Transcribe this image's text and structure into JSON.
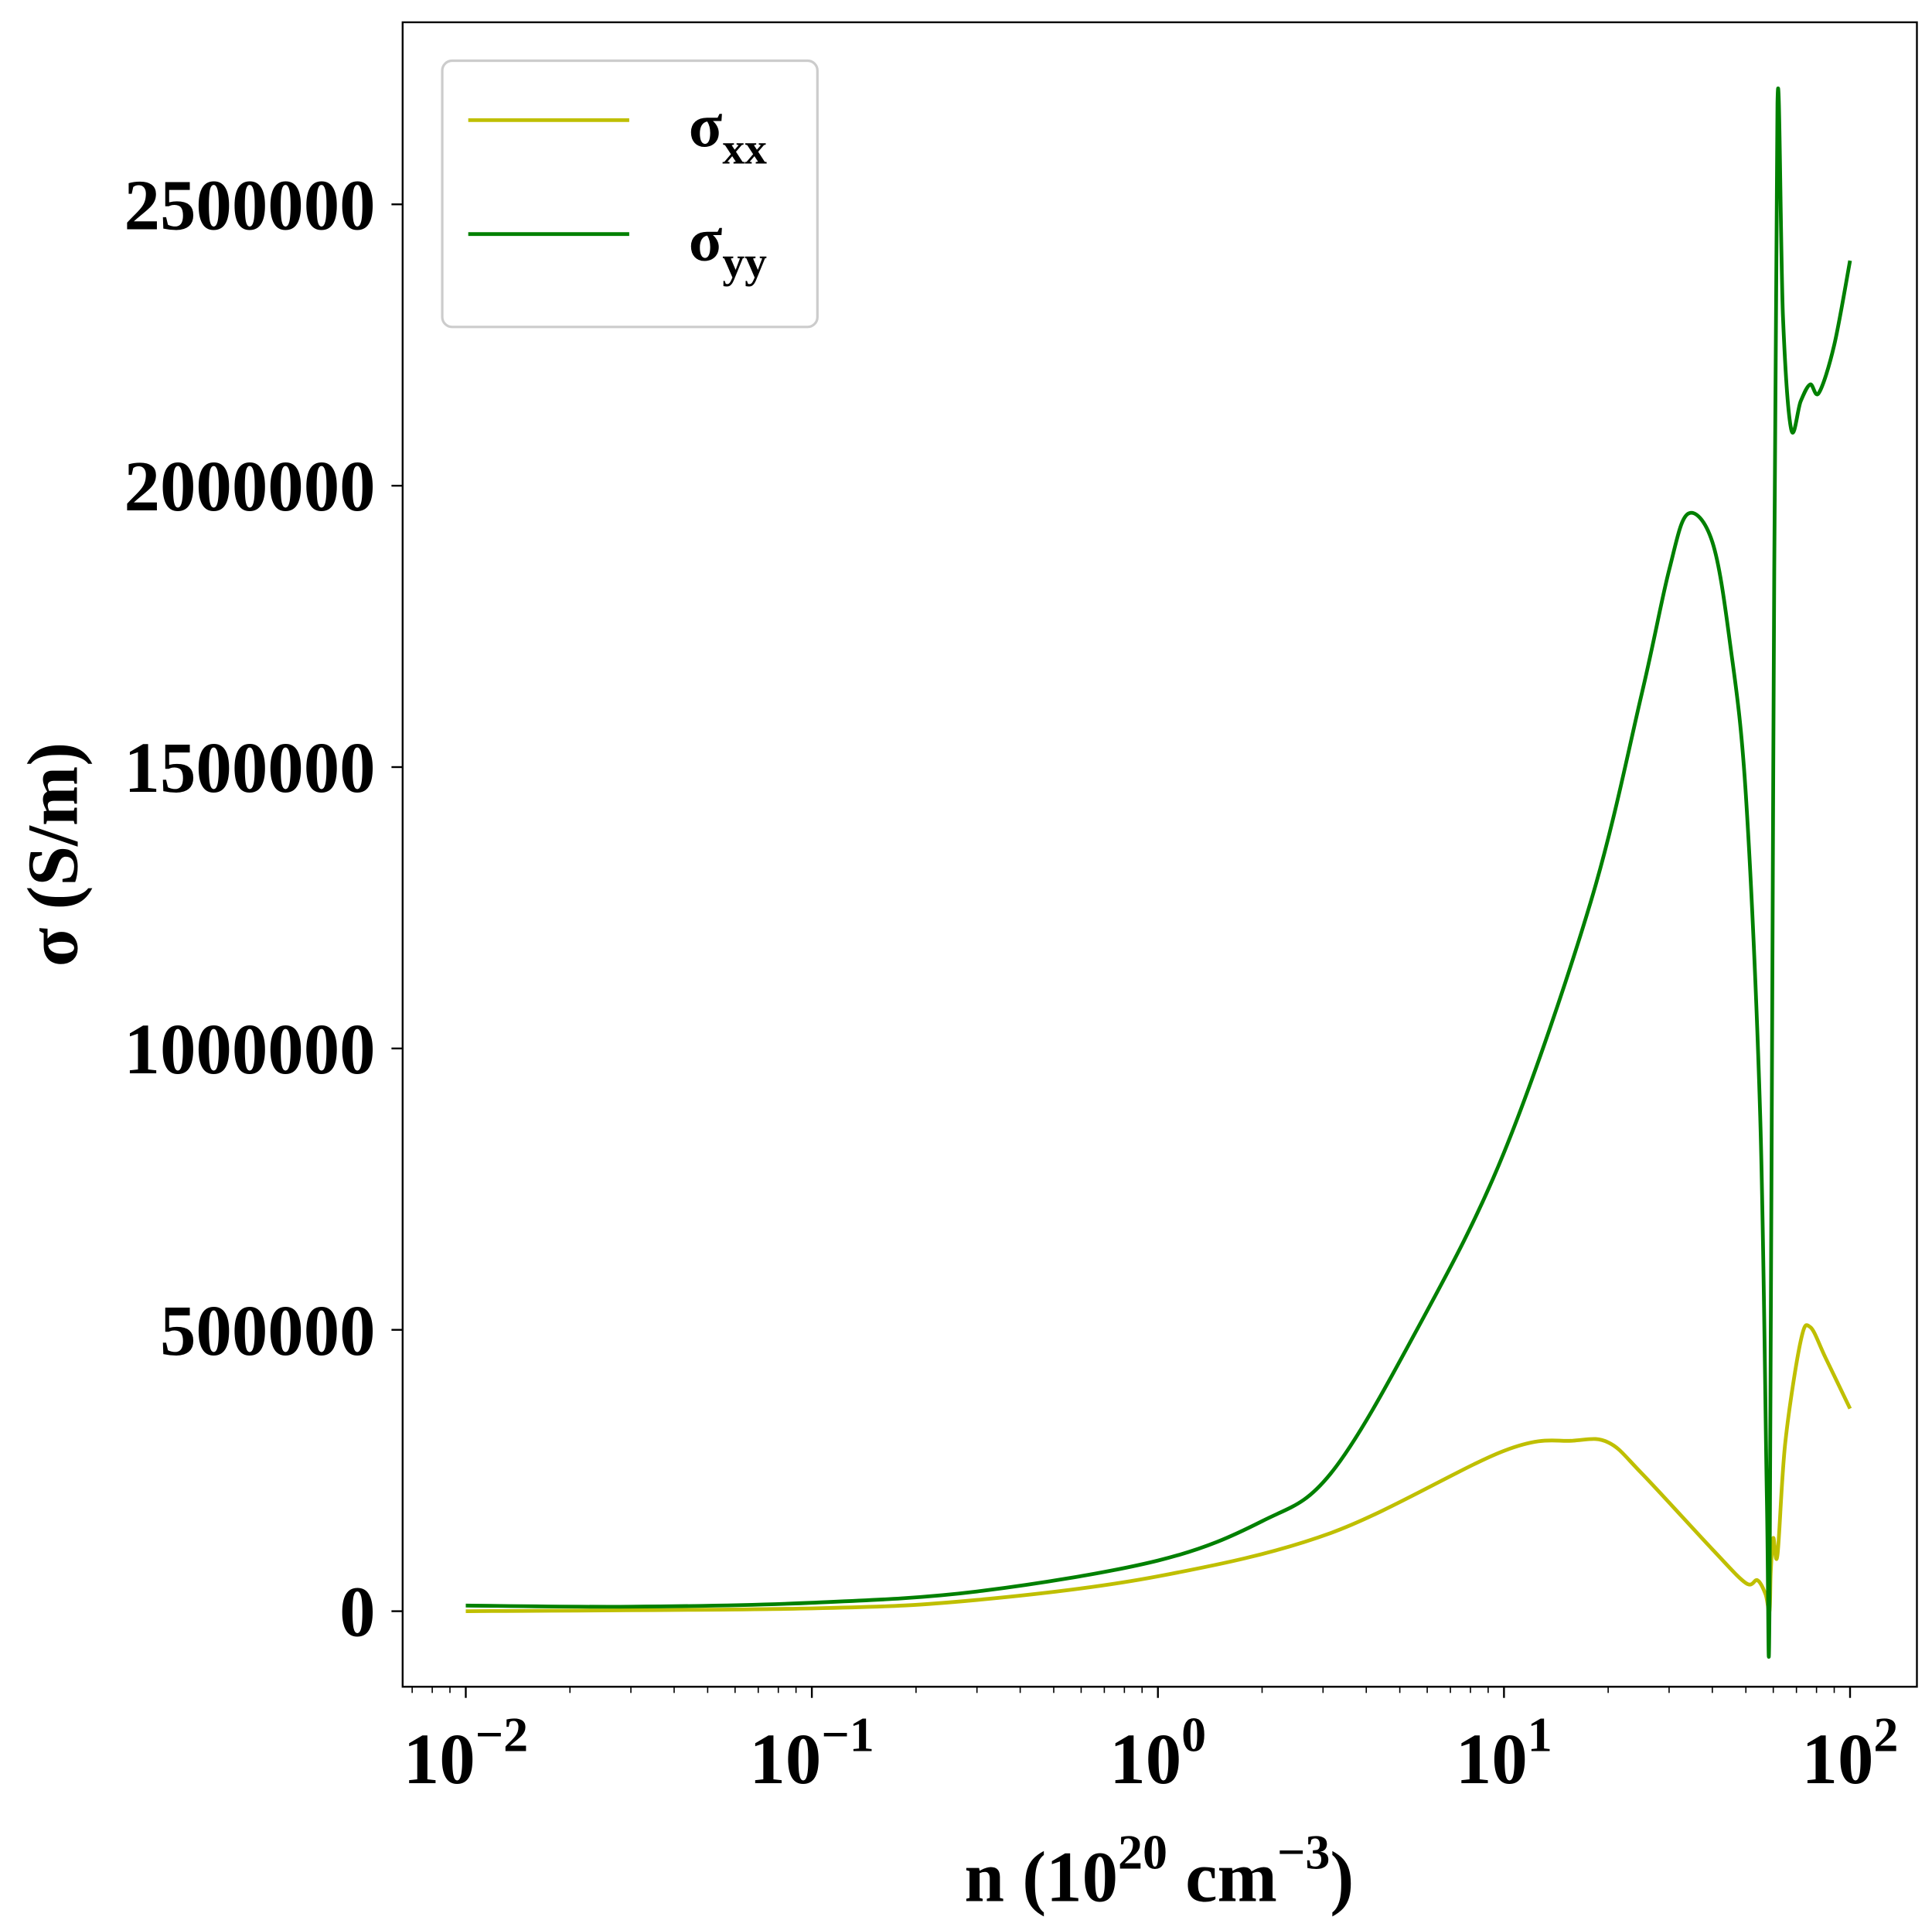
{
  "chart_data": {
    "type": "line",
    "title": "",
    "xlabel": "n (10^20 cm^-3)",
    "xlabel_parts": {
      "base": "n (10",
      "exp1": "20",
      "mid": " cm",
      "exp2": "−3",
      "end": ")"
    },
    "ylabel": "σ (S/m)",
    "xscale": "log",
    "xlim": [
      0.0065,
      155
    ],
    "ylim": [
      -130000,
      2830000
    ],
    "x_ticks": [
      {
        "value": 0.01,
        "base": "10",
        "exp": "−2"
      },
      {
        "value": 0.1,
        "base": "10",
        "exp": "−1"
      },
      {
        "value": 1,
        "base": "10",
        "exp": "0"
      },
      {
        "value": 10,
        "base": "10",
        "exp": "1"
      },
      {
        "value": 100,
        "base": "10",
        "exp": "2"
      }
    ],
    "y_ticks": [
      {
        "value": 0,
        "label": "0"
      },
      {
        "value": 500000,
        "label": "500000"
      },
      {
        "value": 1000000,
        "label": "1000000"
      },
      {
        "value": 1500000,
        "label": "1500000"
      },
      {
        "value": 2000000,
        "label": "2000000"
      },
      {
        "value": 2500000,
        "label": "2500000"
      }
    ],
    "grid": false,
    "legend_position": "top-left",
    "series": [
      {
        "name": "σxx",
        "symbol": "σ",
        "sub": "xx",
        "color": "#bfbf00",
        "x": [
          0.01,
          0.1,
          0.3,
          1,
          3.16,
          10,
          15.8,
          20,
          25,
          40,
          50,
          54,
          57,
          58.5,
          59,
          60,
          61.7,
          65,
          72,
          76.7,
          85,
          100
        ],
        "y": [
          0,
          5000,
          20000,
          62000,
          139000,
          285000,
          303000,
          300000,
          245000,
          110000,
          50000,
          55000,
          30000,
          0,
          70000,
          130000,
          100000,
          300000,
          480000,
          505000,
          450000,
          360000
        ]
      },
      {
        "name": "σyy",
        "symbol": "σ",
        "sub": "yy",
        "color": "#008000",
        "x": [
          0.01,
          0.03,
          0.1,
          0.3,
          1,
          2,
          3.16,
          5.6,
          10,
          17.8,
          25,
          30,
          34,
          40,
          45,
          50,
          55,
          57.5,
          58.5,
          60,
          61.7,
          64,
          67.6,
          72,
          76.7,
          81.3,
          90,
          100
        ],
        "y": [
          10000,
          8000,
          15000,
          35000,
          90000,
          160000,
          245000,
          500000,
          815000,
          1260000,
          1630000,
          1850000,
          1950000,
          1900000,
          1720000,
          1450000,
          880000,
          200000,
          0,
          1500000,
          2680000,
          2300000,
          2100000,
          2150000,
          2180000,
          2165000,
          2250000,
          2400000
        ]
      }
    ]
  }
}
